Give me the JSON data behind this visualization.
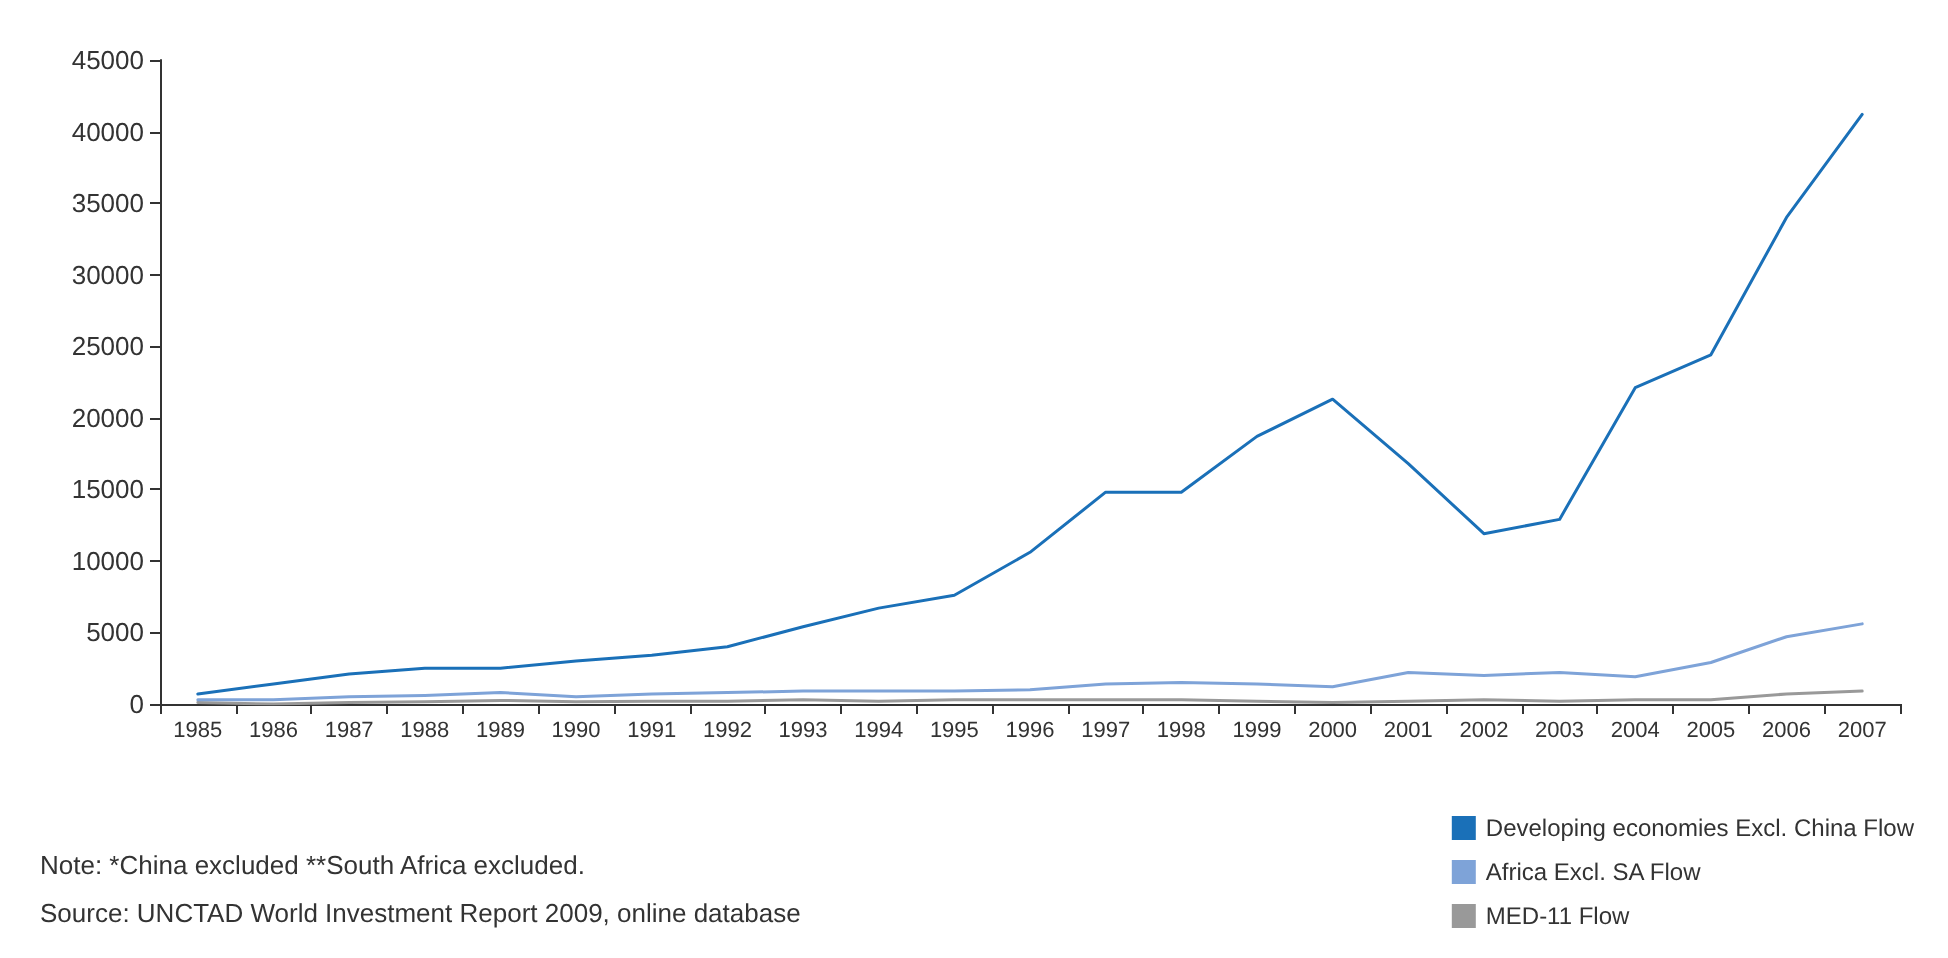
{
  "chart_data": {
    "type": "line",
    "categories": [
      "1985",
      "1986",
      "1987",
      "1988",
      "1989",
      "1990",
      "1991",
      "1992",
      "1993",
      "1994",
      "1995",
      "1996",
      "1997",
      "1998",
      "1999",
      "2000",
      "2001",
      "2002",
      "2003",
      "2004",
      "2005",
      "2006",
      "2007"
    ],
    "series": [
      {
        "name": "Developing economies Excl. China Flow",
        "color": "#1a70b8",
        "values": [
          700,
          1400,
          2100,
          2500,
          2500,
          3000,
          3400,
          4000,
          5400,
          6700,
          7600,
          10600,
          14800,
          14800,
          18700,
          21300,
          16800,
          11900,
          12900,
          22100,
          24400,
          34000,
          41200
        ]
      },
      {
        "name": "Africa Excl. SA Flow",
        "color": "#7ea3d8",
        "values": [
          300,
          300,
          500,
          600,
          800,
          500,
          700,
          800,
          900,
          900,
          900,
          1000,
          1400,
          1500,
          1400,
          1200,
          2200,
          2000,
          2200,
          1900,
          2900,
          4700,
          5600
        ]
      },
      {
        "name": "MED-11 Flow",
        "color": "#999999",
        "values": [
          100,
          0,
          100,
          150,
          250,
          150,
          200,
          200,
          300,
          200,
          300,
          300,
          300,
          300,
          200,
          100,
          200,
          300,
          200,
          300,
          300,
          700,
          900
        ]
      }
    ],
    "ylim": [
      0,
      45000
    ],
    "yticks": [
      0,
      5000,
      10000,
      15000,
      20000,
      25000,
      30000,
      35000,
      40000,
      45000
    ],
    "grid": false,
    "legend": "bottom right",
    "marker": "none",
    "line_style": "solid",
    "annotations": [
      "Note: *China excluded **South Africa excluded.",
      "Source: UNCTAD World Investment Report 2009, online database"
    ]
  }
}
